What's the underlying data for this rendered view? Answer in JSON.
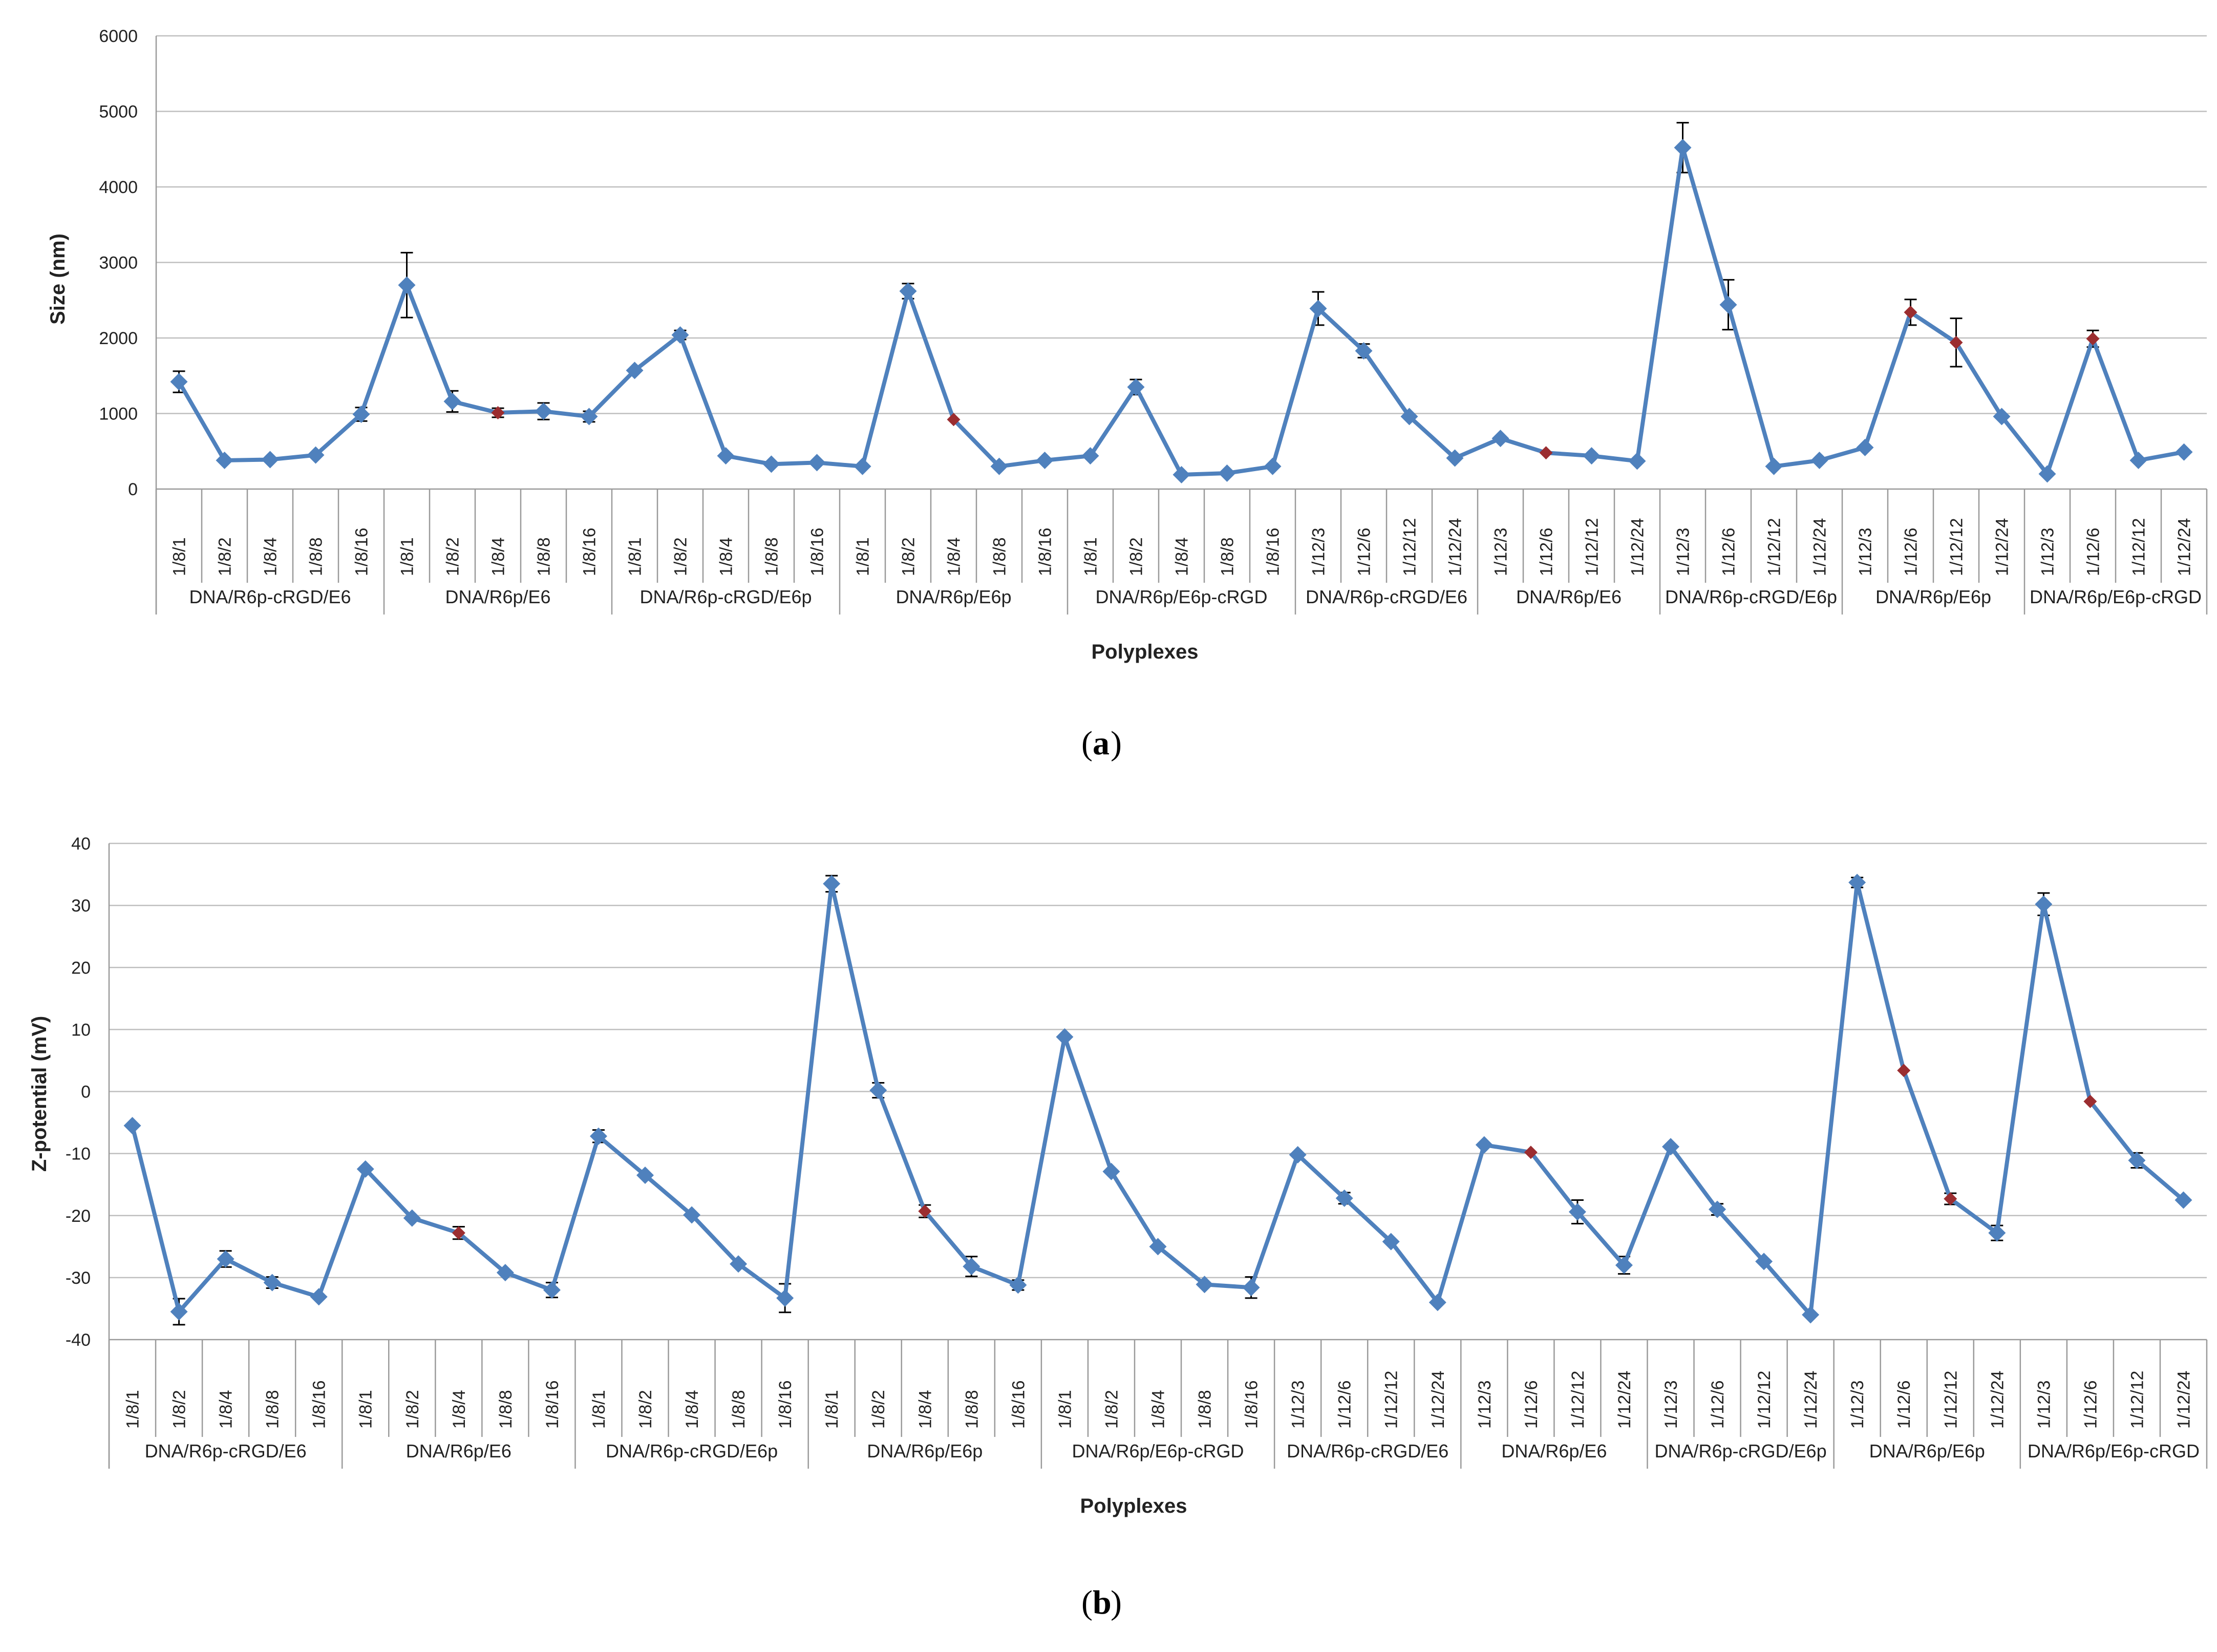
{
  "colors": {
    "line": "#4f81bd",
    "marker": "#4f81bd",
    "highlight": "#9b2d30",
    "grid": "#bfbfbf",
    "axis": "#9a9a9a",
    "errorbar": "#000000"
  },
  "chart_data": [
    {
      "type": "line",
      "panel_label": "a",
      "xlabel": "Polyplexes",
      "ylabel": "Size (nm)",
      "ylim": [
        0,
        6000
      ],
      "yticks": [
        0,
        1000,
        2000,
        3000,
        4000,
        5000,
        6000
      ],
      "grid": true,
      "groups": [
        {
          "name": "DNA/R6p-cRGD/E6",
          "categories": [
            "1/8/1",
            "1/8/2",
            "1/8/4",
            "1/8/8",
            "1/8/16"
          ]
        },
        {
          "name": "DNA/R6p/E6",
          "categories": [
            "1/8/1",
            "1/8/2",
            "1/8/4",
            "1/8/8",
            "1/8/16"
          ]
        },
        {
          "name": "DNA/R6p-cRGD/E6p",
          "categories": [
            "1/8/1",
            "1/8/2",
            "1/8/4",
            "1/8/8",
            "1/8/16"
          ]
        },
        {
          "name": "DNA/R6p/E6p",
          "categories": [
            "1/8/1",
            "1/8/2",
            "1/8/4",
            "1/8/8",
            "1/8/16"
          ]
        },
        {
          "name": "DNA/R6p/E6p-cRGD",
          "categories": [
            "1/8/1",
            "1/8/2",
            "1/8/4",
            "1/8/8",
            "1/8/16"
          ]
        },
        {
          "name": "DNA/R6p-cRGD/E6",
          "categories": [
            "1/12/3",
            "1/12/6",
            "1/12/12",
            "1/12/24"
          ]
        },
        {
          "name": "DNA/R6p/E6",
          "categories": [
            "1/12/3",
            "1/12/6",
            "1/12/12",
            "1/12/24"
          ]
        },
        {
          "name": "DNA/R6p-cRGD/E6p",
          "categories": [
            "1/12/3",
            "1/12/6",
            "1/12/12",
            "1/12/24"
          ]
        },
        {
          "name": "DNA/R6p/E6p",
          "categories": [
            "1/12/3",
            "1/12/6",
            "1/12/12",
            "1/12/24"
          ]
        },
        {
          "name": "DNA/R6p/E6p-cRGD",
          "categories": [
            "1/12/3",
            "1/12/6",
            "1/12/12",
            "1/12/24"
          ]
        }
      ],
      "values": [
        1420,
        380,
        390,
        450,
        990,
        2700,
        1160,
        1010,
        1030,
        960,
        1570,
        2040,
        440,
        330,
        350,
        300,
        2620,
        920,
        300,
        380,
        440,
        1350,
        190,
        210,
        300,
        2390,
        1830,
        960,
        410,
        670,
        480,
        440,
        370,
        4520,
        2440,
        300,
        380,
        550,
        2340,
        1940,
        960,
        200,
        1990,
        380,
        490
      ],
      "errors": [
        140,
        0,
        0,
        0,
        90,
        430,
        140,
        60,
        110,
        70,
        0,
        60,
        0,
        0,
        0,
        0,
        100,
        0,
        0,
        0,
        0,
        100,
        0,
        0,
        0,
        220,
        90,
        0,
        0,
        0,
        0,
        0,
        0,
        330,
        330,
        0,
        0,
        0,
        170,
        320,
        0,
        0,
        110,
        0,
        0
      ],
      "highlighted": [
        7,
        17,
        30,
        38,
        39,
        42
      ]
    },
    {
      "type": "line",
      "panel_label": "b",
      "xlabel": "Polyplexes",
      "ylabel": "Z-potential (mV)",
      "ylim": [
        -40,
        40
      ],
      "yticks": [
        -40,
        -30,
        -20,
        -10,
        0,
        10,
        20,
        30,
        40
      ],
      "grid": true,
      "groups": [
        {
          "name": "DNA/R6p-cRGD/E6",
          "categories": [
            "1/8/1",
            "1/8/2",
            "1/8/4",
            "1/8/8",
            "1/8/16"
          ]
        },
        {
          "name": "DNA/R6p/E6",
          "categories": [
            "1/8/1",
            "1/8/2",
            "1/8/4",
            "1/8/8",
            "1/8/16"
          ]
        },
        {
          "name": "DNA/R6p-cRGD/E6p",
          "categories": [
            "1/8/1",
            "1/8/2",
            "1/8/4",
            "1/8/8",
            "1/8/16"
          ]
        },
        {
          "name": "DNA/R6p/E6p",
          "categories": [
            "1/8/1",
            "1/8/2",
            "1/8/4",
            "1/8/8",
            "1/8/16"
          ]
        },
        {
          "name": "DNA/R6p/E6p-cRGD",
          "categories": [
            "1/8/1",
            "1/8/2",
            "1/8/4",
            "1/8/8",
            "1/8/16"
          ]
        },
        {
          "name": "DNA/R6p-cRGD/E6",
          "categories": [
            "1/12/3",
            "1/12/6",
            "1/12/12",
            "1/12/24"
          ]
        },
        {
          "name": "DNA/R6p/E6",
          "categories": [
            "1/12/3",
            "1/12/6",
            "1/12/12",
            "1/12/24"
          ]
        },
        {
          "name": "DNA/R6p-cRGD/E6p",
          "categories": [
            "1/12/3",
            "1/12/6",
            "1/12/12",
            "1/12/24"
          ]
        },
        {
          "name": "DNA/R6p/E6p",
          "categories": [
            "1/12/3",
            "1/12/6",
            "1/12/12",
            "1/12/24"
          ]
        },
        {
          "name": "DNA/R6p/E6p-cRGD",
          "categories": [
            "1/12/3",
            "1/12/6",
            "1/12/12",
            "1/12/24"
          ]
        }
      ],
      "values": [
        -5.5,
        -35.5,
        -27,
        -30.8,
        -33.1,
        -12.5,
        -20.4,
        -22.8,
        -29.2,
        -32,
        -7.2,
        -13.5,
        -19.9,
        -27.8,
        -33.3,
        33.5,
        0.2,
        -19.3,
        -28.2,
        -31.2,
        8.8,
        -12.9,
        -25,
        -31.1,
        -31.6,
        -10.2,
        -17.2,
        -24.2,
        -34,
        -8.6,
        -9.8,
        -19.4,
        -28,
        -8.9,
        -19,
        -27.4,
        -36,
        33.7,
        3.4,
        -17.3,
        -22.8,
        30.2,
        -1.6,
        -11.1,
        -17.5
      ],
      "errors": [
        0,
        2.1,
        1.3,
        0.9,
        0,
        0,
        0,
        1.0,
        0,
        1.2,
        1.0,
        0,
        0,
        0,
        2.3,
        1.3,
        1.2,
        1.0,
        1.6,
        0.8,
        0,
        0,
        0,
        0,
        1.7,
        0,
        0.9,
        0,
        0,
        0,
        0,
        1.9,
        1.4,
        0,
        0.9,
        0,
        0,
        0.8,
        0,
        0.9,
        1.2,
        1.8,
        0,
        1.2,
        0
      ],
      "highlighted": [
        7,
        17,
        30,
        38,
        39,
        42
      ]
    }
  ]
}
